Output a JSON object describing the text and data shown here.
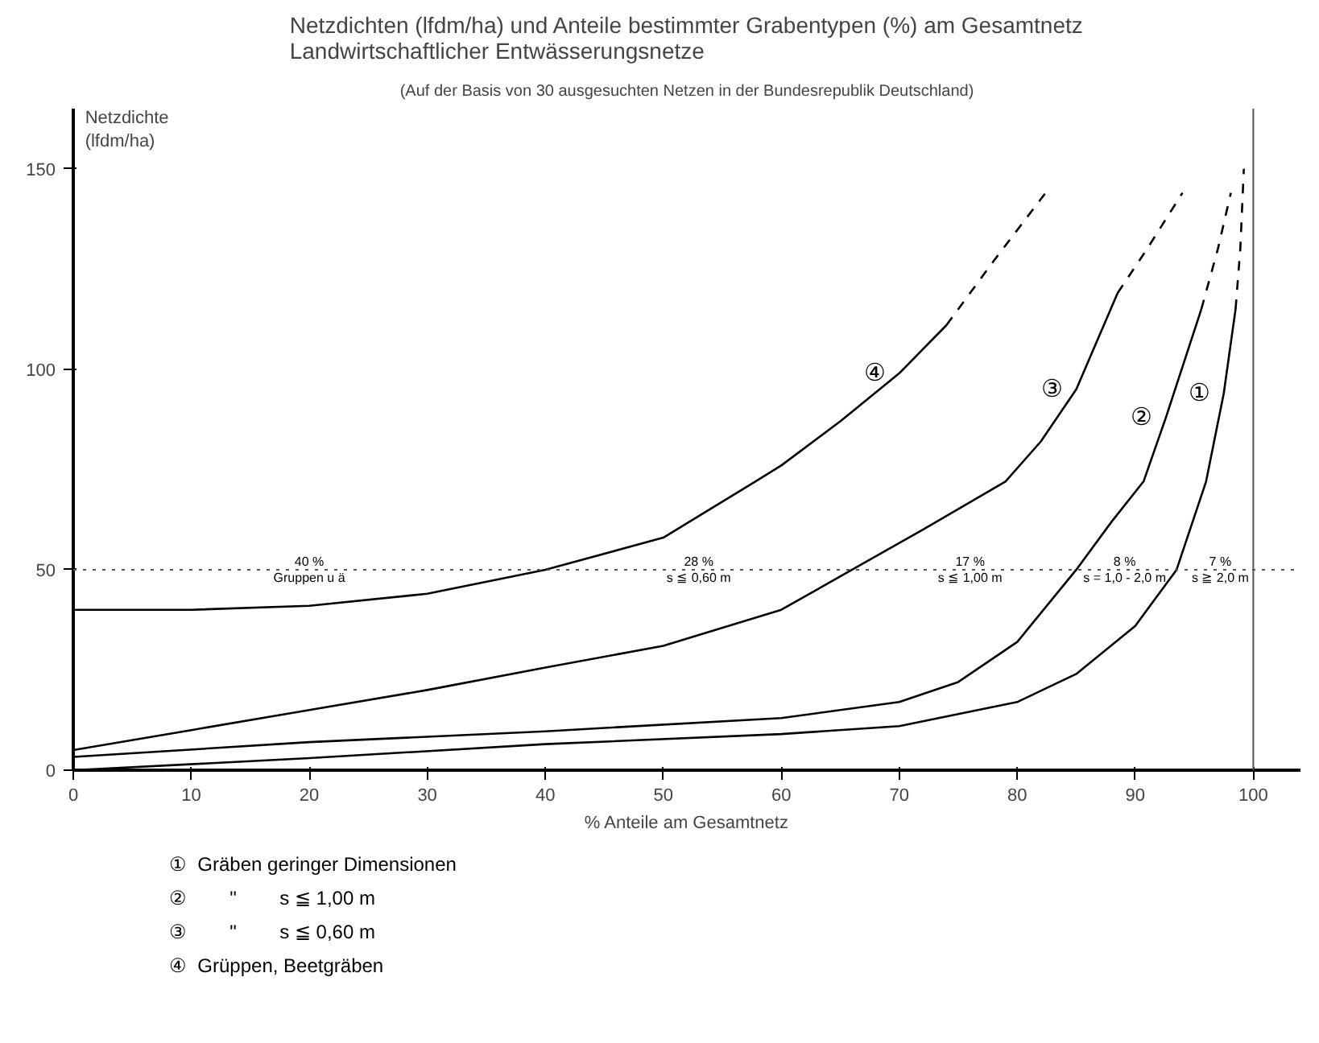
{
  "chart_data": {
    "type": "line",
    "title": "Netzdichten (lfdm/ha) und Anteile bestimmter Grabentypen (%) am Gesamtnetz\nLandwirtschaftlicher Entwässerungsnetze",
    "subtitle": "(Auf der Basis von 30 ausgesuchten Netzen in der Bundesrepublik Deutschland)",
    "xlabel": "% Anteile am Gesamtnetz",
    "ylabel": "Netzdichte\n(lfdm/ha)",
    "xlim": [
      0,
      104
    ],
    "ylim": [
      0,
      165
    ],
    "xticks": [
      0,
      10,
      20,
      30,
      40,
      50,
      60,
      70,
      80,
      90,
      100
    ],
    "yticks": [
      0,
      50,
      100,
      150
    ],
    "grid": false,
    "series": [
      {
        "name": "④",
        "color": "#000000",
        "line_style": "solid",
        "x": [
          0,
          10,
          20,
          30,
          40,
          50,
          57.8,
          60,
          65,
          70,
          74
        ],
        "values": [
          40,
          40,
          41,
          44,
          50,
          58,
          72,
          76,
          87,
          99,
          111
        ]
      },
      {
        "color": "#000000",
        "line_style": "dashed",
        "x": [
          74,
          78,
          82.4
        ],
        "values": [
          111,
          127,
          144
        ]
      },
      {
        "name": "③",
        "color": "#000000",
        "line_style": "solid",
        "x": [
          0,
          10,
          20,
          30,
          40,
          50,
          60,
          66,
          72,
          79,
          82,
          85,
          88.5
        ],
        "values": [
          5,
          10,
          15,
          20,
          25.6,
          31,
          40,
          50,
          60,
          72,
          82,
          95,
          119
        ]
      },
      {
        "color": "#000000",
        "line_style": "dashed",
        "x": [
          88.5,
          91,
          94
        ],
        "values": [
          119,
          130,
          144
        ]
      },
      {
        "name": "②",
        "color": "#000000",
        "line_style": "solid",
        "x": [
          0,
          20,
          40,
          60,
          70,
          75,
          80,
          85,
          88,
          90.7,
          92.6,
          95.6
        ],
        "values": [
          3.3,
          7,
          9.7,
          13,
          17,
          22,
          32,
          50,
          62,
          72,
          88,
          115
        ]
      },
      {
        "color": "#000000",
        "line_style": "dashed",
        "x": [
          95.6,
          97,
          98.1
        ],
        "values": [
          115,
          130,
          144
        ]
      },
      {
        "name": "①",
        "color": "#000000",
        "line_style": "solid",
        "x": [
          0,
          20,
          40,
          60,
          70,
          80,
          85,
          90,
          93.5,
          96,
          97.5,
          98.5
        ],
        "values": [
          0,
          3,
          6.5,
          9,
          11,
          17,
          24,
          36,
          50,
          72,
          94,
          115
        ]
      },
      {
        "color": "#000000",
        "line_style": "dashed",
        "x": [
          98.5,
          98.9,
          99.2
        ],
        "values": [
          115,
          130,
          150
        ]
      }
    ],
    "ref_lines": [
      {
        "axis": "y",
        "value": 50,
        "line_style": "dotted",
        "color": "#555555"
      },
      {
        "axis": "x",
        "value": 100,
        "line_style": "solid",
        "color": "#555555"
      }
    ],
    "annotations": [
      {
        "text": "40 %\nGruppen u ä",
        "x": 20,
        "y": 50
      },
      {
        "text": "28 %\ns ≦ 0,60 m",
        "x": 53,
        "y": 50
      },
      {
        "text": "17 %\ns ≦ 1,00 m",
        "x": 76,
        "y": 50
      },
      {
        "text": "8 %\ns = 1,0 - 2,0 m",
        "x": 89.1,
        "y": 50
      },
      {
        "text": "7 %\ns ≧ 2,0 m",
        "x": 97.2,
        "y": 50
      },
      "①  Gräben geringer Dimensionen",
      "②        \"        s ≦ 1,00 m",
      "③        \"        s ≦ 0,60 m",
      "④  Grüppen, Beetgräben"
    ]
  }
}
